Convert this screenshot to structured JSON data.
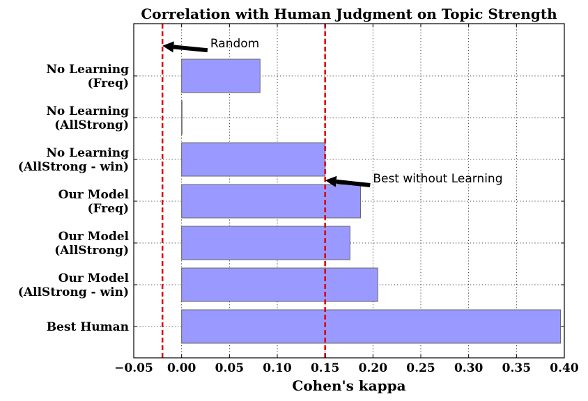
{
  "chart_data": {
    "type": "bar",
    "orientation": "horizontal",
    "title": "Correlation with Human Judgment on Topic Strength",
    "xlabel": "Cohen's kappa",
    "ylabel": "",
    "xlim": [
      -0.05,
      0.4
    ],
    "grid": true,
    "xticks": [
      -0.05,
      0.0,
      0.05,
      0.1,
      0.15,
      0.2,
      0.25,
      0.3,
      0.35,
      0.4
    ],
    "xtick_labels": [
      "−0.05",
      "0.00",
      "0.05",
      "0.10",
      "0.15",
      "0.20",
      "0.25",
      "0.30",
      "0.35",
      "0.40"
    ],
    "categories": [
      [
        "No Learning",
        "(Freq)"
      ],
      [
        "No Learning",
        "(AllStrong)"
      ],
      [
        "No Learning",
        "(AllStrong - win)"
      ],
      [
        "Our Model",
        "(Freq)"
      ],
      [
        "Our Model",
        "(AllStrong)"
      ],
      [
        "Our Model",
        "(AllStrong - win)"
      ],
      [
        "Best Human"
      ]
    ],
    "values": [
      0.082,
      0.0005,
      0.15,
      0.187,
      0.176,
      0.205,
      0.396
    ],
    "bar_color": "#9999ff",
    "reference_lines": [
      {
        "x": -0.02,
        "color": "#dd0000",
        "label": "Random"
      },
      {
        "x": 0.15,
        "color": "#dd0000",
        "label": "Best without Learning"
      }
    ],
    "annotations": [
      {
        "text": "Random",
        "point": [
          -0.02,
          6.72
        ],
        "text_at": [
          0.03,
          6.68
        ]
      },
      {
        "text": "Best without Learning",
        "point": [
          0.15,
          3.5
        ],
        "text_at": [
          0.2,
          3.45
        ]
      }
    ]
  }
}
